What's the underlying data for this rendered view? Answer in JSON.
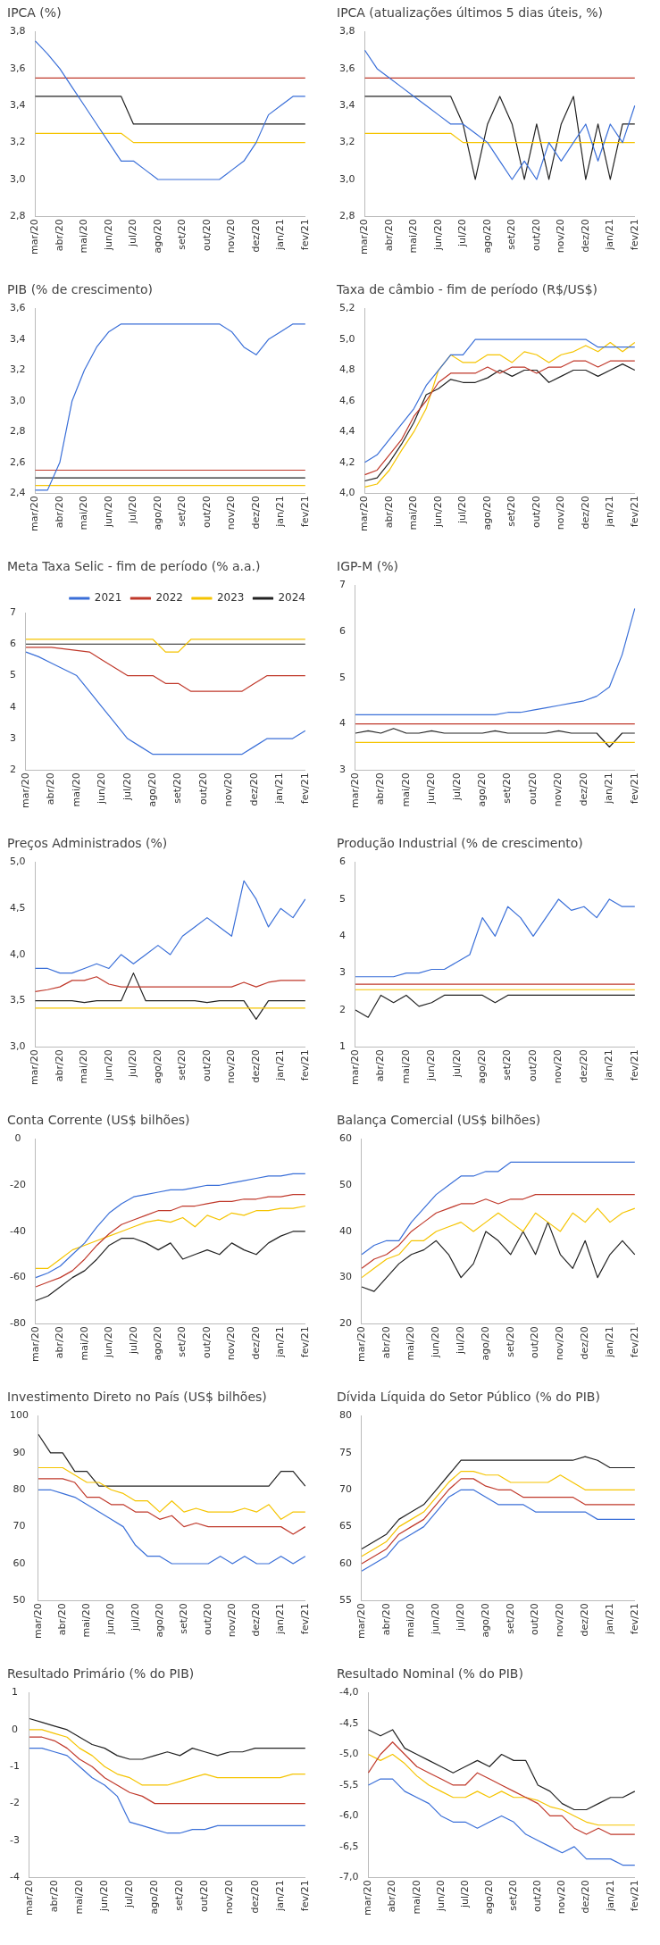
{
  "chart_data": [
    {
      "type": "line",
      "title": "IPCA (%)",
      "categories": [
        "mar/20",
        null,
        "abr/20",
        null,
        "mai/20",
        null,
        "jun/20",
        null,
        "jul/20",
        null,
        "ago/20",
        null,
        "set/20",
        null,
        "out/20",
        null,
        "nov/20",
        null,
        "dez/20",
        null,
        "jan/21",
        null,
        "fev/21"
      ],
      "ylim": [
        2.8,
        3.8
      ],
      "yticks": [
        {
          "value": 2.8,
          "label": "2,8"
        },
        {
          "value": 3.0,
          "label": "3,0"
        },
        {
          "value": 3.2,
          "label": "3,2"
        },
        {
          "value": 3.4,
          "label": "3,4"
        },
        {
          "value": 3.6,
          "label": "3,6"
        },
        {
          "value": 3.8,
          "label": "3,8"
        }
      ],
      "series": [
        {
          "color": "#3a6fd8",
          "values": [
            3.75,
            3.68,
            3.6,
            3.5,
            3.4,
            3.3,
            3.2,
            3.1,
            3.1,
            3.05,
            3.0,
            3.0,
            3.0,
            3.0,
            3.0,
            3.0,
            3.05,
            3.1,
            3.2,
            3.35,
            3.4,
            3.45,
            3.45
          ]
        },
        {
          "color": "#c0392b",
          "values": [
            3.55,
            3.55,
            3.55,
            3.55,
            3.55,
            3.55,
            3.55,
            3.55,
            3.55,
            3.55,
            3.55,
            3.55,
            3.55,
            3.55,
            3.55,
            3.55,
            3.55,
            3.55,
            3.55,
            3.55,
            3.55,
            3.55,
            3.55
          ]
        },
        {
          "color": "#f5c400",
          "values": [
            3.25,
            3.25,
            3.25,
            3.25,
            3.25,
            3.25,
            3.25,
            3.25,
            3.2,
            3.2,
            3.2,
            3.2,
            3.2,
            3.2,
            3.2,
            3.2,
            3.2,
            3.2,
            3.2,
            3.2,
            3.2,
            3.2,
            3.2
          ]
        },
        {
          "color": "#222222",
          "values": [
            3.45,
            3.45,
            3.45,
            3.45,
            3.45,
            3.45,
            3.45,
            3.45,
            3.3,
            3.3,
            3.3,
            3.3,
            3.3,
            3.3,
            3.3,
            3.3,
            3.3,
            3.3,
            3.3,
            3.3,
            3.3,
            3.3,
            3.3
          ]
        }
      ]
    },
    {
      "type": "line",
      "title": "IPCA (atualizações últimos 5 dias úteis, %)",
      "categories": [
        "mar/20",
        null,
        "abr/20",
        null,
        "mai/20",
        null,
        "jun/20",
        null,
        "jul/20",
        null,
        "ago/20",
        null,
        "set/20",
        null,
        "out/20",
        null,
        "nov/20",
        null,
        "dez/20",
        null,
        "jan/21",
        null,
        "fev/21"
      ],
      "ylim": [
        2.8,
        3.8
      ],
      "yticks": [
        {
          "value": 2.8,
          "label": "2,8"
        },
        {
          "value": 3.0,
          "label": "3,0"
        },
        {
          "value": 3.2,
          "label": "3,2"
        },
        {
          "value": 3.4,
          "label": "3,4"
        },
        {
          "value": 3.6,
          "label": "3,6"
        },
        {
          "value": 3.8,
          "label": "3,8"
        }
      ],
      "series": [
        {
          "color": "#3a6fd8",
          "values": [
            3.7,
            3.6,
            3.55,
            3.5,
            3.45,
            3.4,
            3.35,
            3.3,
            3.3,
            3.25,
            3.2,
            3.1,
            3.0,
            3.1,
            3.0,
            3.2,
            3.1,
            3.2,
            3.3,
            3.1,
            3.3,
            3.2,
            3.4
          ]
        },
        {
          "color": "#c0392b",
          "values": [
            3.55,
            3.55,
            3.55,
            3.55,
            3.55,
            3.55,
            3.55,
            3.55,
            3.55,
            3.55,
            3.55,
            3.55,
            3.55,
            3.55,
            3.55,
            3.55,
            3.55,
            3.55,
            3.55,
            3.55,
            3.55,
            3.55,
            3.55
          ]
        },
        {
          "color": "#f5c400",
          "values": [
            3.25,
            3.25,
            3.25,
            3.25,
            3.25,
            3.25,
            3.25,
            3.25,
            3.2,
            3.2,
            3.2,
            3.2,
            3.2,
            3.2,
            3.2,
            3.2,
            3.2,
            3.2,
            3.2,
            3.2,
            3.2,
            3.2,
            3.2
          ]
        },
        {
          "color": "#222222",
          "values": [
            3.45,
            3.45,
            3.45,
            3.45,
            3.45,
            3.45,
            3.45,
            3.45,
            3.3,
            3.0,
            3.3,
            3.45,
            3.3,
            3.0,
            3.3,
            3.0,
            3.3,
            3.45,
            3.0,
            3.3,
            3.0,
            3.3,
            3.3
          ]
        }
      ]
    },
    {
      "type": "line",
      "title": "PIB (% de crescimento)",
      "categories": [
        "mar/20",
        null,
        "abr/20",
        null,
        "mai/20",
        null,
        "jun/20",
        null,
        "jul/20",
        null,
        "ago/20",
        null,
        "set/20",
        null,
        "out/20",
        null,
        "nov/20",
        null,
        "dez/20",
        null,
        "jan/21",
        null,
        "fev/21"
      ],
      "ylim": [
        2.4,
        3.6
      ],
      "yticks": [
        {
          "value": 2.4,
          "label": "2,4"
        },
        {
          "value": 2.6,
          "label": "2,6"
        },
        {
          "value": 2.8,
          "label": "2,8"
        },
        {
          "value": 3.0,
          "label": "3,0"
        },
        {
          "value": 3.2,
          "label": "3,2"
        },
        {
          "value": 3.4,
          "label": "3,4"
        },
        {
          "value": 3.6,
          "label": "3,6"
        }
      ],
      "series": [
        {
          "color": "#3a6fd8",
          "values": [
            2.42,
            2.42,
            2.6,
            3.0,
            3.2,
            3.35,
            3.45,
            3.5,
            3.5,
            3.5,
            3.5,
            3.5,
            3.5,
            3.5,
            3.5,
            3.5,
            3.45,
            3.35,
            3.3,
            3.4,
            3.45,
            3.5,
            3.5
          ]
        },
        {
          "color": "#c0392b",
          "values": [
            2.55,
            2.55,
            2.55,
            2.55,
            2.55,
            2.55,
            2.55,
            2.55,
            2.55,
            2.55,
            2.55,
            2.55,
            2.55,
            2.55,
            2.55,
            2.55,
            2.55,
            2.55,
            2.55,
            2.55,
            2.55,
            2.55,
            2.55
          ]
        },
        {
          "color": "#f5c400",
          "values": [
            2.45,
            2.45,
            2.45,
            2.45,
            2.45,
            2.45,
            2.45,
            2.45,
            2.45,
            2.45,
            2.45,
            2.45,
            2.45,
            2.45,
            2.45,
            2.45,
            2.45,
            2.45,
            2.45,
            2.45,
            2.45,
            2.45,
            2.45
          ]
        },
        {
          "color": "#222222",
          "values": [
            2.5,
            2.5,
            2.5,
            2.5,
            2.5,
            2.5,
            2.5,
            2.5,
            2.5,
            2.5,
            2.5,
            2.5,
            2.5,
            2.5,
            2.5,
            2.5,
            2.5,
            2.5,
            2.5,
            2.5,
            2.5,
            2.5,
            2.5
          ]
        }
      ]
    },
    {
      "type": "line",
      "title": "Taxa de câmbio - fim de período (R$/US$)",
      "categories": [
        "mar/20",
        null,
        "abr/20",
        null,
        "mai/20",
        null,
        "jun/20",
        null,
        "jul/20",
        null,
        "ago/20",
        null,
        "set/20",
        null,
        "out/20",
        null,
        "nov/20",
        null,
        "dez/20",
        null,
        "jan/21",
        null,
        "fev/21"
      ],
      "ylim": [
        4.0,
        5.2
      ],
      "yticks": [
        {
          "value": 4.0,
          "label": "4,0"
        },
        {
          "value": 4.2,
          "label": "4,2"
        },
        {
          "value": 4.4,
          "label": "4,4"
        },
        {
          "value": 4.6,
          "label": "4,6"
        },
        {
          "value": 4.8,
          "label": "4,8"
        },
        {
          "value": 5.0,
          "label": "5,0"
        },
        {
          "value": 5.2,
          "label": "5,2"
        }
      ],
      "series": [
        {
          "color": "#3a6fd8",
          "values": [
            4.2,
            4.25,
            4.35,
            4.45,
            4.55,
            4.7,
            4.8,
            4.9,
            4.9,
            5.0,
            5.0,
            5.0,
            5.0,
            5.0,
            5.0,
            5.0,
            5.0,
            5.0,
            5.0,
            4.95,
            4.95,
            4.95,
            4.95
          ]
        },
        {
          "color": "#c0392b",
          "values": [
            4.12,
            4.15,
            4.25,
            4.35,
            4.5,
            4.6,
            4.72,
            4.78,
            4.78,
            4.78,
            4.82,
            4.78,
            4.82,
            4.82,
            4.78,
            4.82,
            4.82,
            4.86,
            4.86,
            4.82,
            4.86,
            4.86,
            4.86
          ]
        },
        {
          "color": "#f5c400",
          "values": [
            4.04,
            4.06,
            4.15,
            4.28,
            4.4,
            4.55,
            4.8,
            4.9,
            4.85,
            4.85,
            4.9,
            4.9,
            4.85,
            4.92,
            4.9,
            4.85,
            4.9,
            4.92,
            4.96,
            4.92,
            4.98,
            4.92,
            4.98
          ]
        },
        {
          "color": "#222222",
          "values": [
            4.08,
            4.1,
            4.2,
            4.32,
            4.46,
            4.64,
            4.68,
            4.74,
            4.72,
            4.72,
            4.75,
            4.8,
            4.76,
            4.8,
            4.8,
            4.72,
            4.76,
            4.8,
            4.8,
            4.76,
            4.8,
            4.84,
            4.8
          ]
        }
      ]
    },
    {
      "type": "line",
      "title": "Meta Taxa Selic - fim de período (% a.a.)",
      "legend": "top right",
      "categories": [
        "mar/20",
        null,
        "abr/20",
        null,
        "mai/20",
        null,
        "jun/20",
        null,
        "jul/20",
        null,
        "ago/20",
        null,
        "set/20",
        null,
        "out/20",
        null,
        "nov/20",
        null,
        "dez/20",
        null,
        "jan/21",
        null,
        "fev/21"
      ],
      "ylim": [
        2,
        7
      ],
      "yticks": [
        2,
        3,
        4,
        5,
        6,
        7
      ],
      "series": [
        {
          "name": "2021",
          "color": "#3a6fd8",
          "values": [
            5.75,
            5.6,
            5.4,
            5.2,
            5.0,
            4.5,
            4.0,
            3.5,
            3.0,
            2.75,
            2.5,
            2.5,
            2.5,
            2.5,
            2.5,
            2.5,
            2.5,
            2.5,
            2.75,
            3.0,
            3.0,
            3.0,
            3.25
          ]
        },
        {
          "name": "2022",
          "color": "#c0392b",
          "values": [
            5.9,
            5.9,
            5.9,
            5.85,
            5.8,
            5.75,
            5.5,
            5.25,
            5.0,
            5.0,
            5.0,
            4.75,
            4.75,
            4.5,
            4.5,
            4.5,
            4.5,
            4.5,
            4.75,
            5.0,
            5.0,
            5.0,
            5.0
          ]
        },
        {
          "name": "2023",
          "color": "#f5c400",
          "values": [
            6.15,
            6.15,
            6.15,
            6.15,
            6.15,
            6.15,
            6.15,
            6.15,
            6.15,
            6.15,
            6.15,
            5.75,
            5.75,
            6.15,
            6.15,
            6.15,
            6.15,
            6.15,
            6.15,
            6.15,
            6.15,
            6.15,
            6.15
          ]
        },
        {
          "name": "2024",
          "color": "#222222",
          "values": [
            6.0,
            6.0,
            6.0,
            6.0,
            6.0,
            6.0,
            6.0,
            6.0,
            6.0,
            6.0,
            6.0,
            6.0,
            6.0,
            6.0,
            6.0,
            6.0,
            6.0,
            6.0,
            6.0,
            6.0,
            6.0,
            6.0,
            6.0
          ]
        }
      ]
    },
    {
      "type": "line",
      "title": "IGP-M (%)",
      "categories": [
        "mar/20",
        null,
        "abr/20",
        null,
        "mai/20",
        null,
        "jun/20",
        null,
        "jul/20",
        null,
        "ago/20",
        null,
        "set/20",
        null,
        "out/20",
        null,
        "nov/20",
        null,
        "dez/20",
        null,
        "jan/21",
        null,
        "fev/21"
      ],
      "ylim": [
        3,
        7
      ],
      "yticks": [
        3,
        4,
        5,
        6,
        7
      ],
      "series": [
        {
          "color": "#3a6fd8",
          "values": [
            4.2,
            4.2,
            4.2,
            4.2,
            4.2,
            4.2,
            4.2,
            4.2,
            4.2,
            4.2,
            4.2,
            4.2,
            4.25,
            4.25,
            4.3,
            4.35,
            4.4,
            4.45,
            4.5,
            4.6,
            4.8,
            5.5,
            6.5
          ]
        },
        {
          "color": "#c0392b",
          "values": [
            4.0,
            4.0,
            4.0,
            4.0,
            4.0,
            4.0,
            4.0,
            4.0,
            4.0,
            4.0,
            4.0,
            4.0,
            4.0,
            4.0,
            4.0,
            4.0,
            4.0,
            4.0,
            4.0,
            4.0,
            4.0,
            4.0,
            4.0
          ]
        },
        {
          "color": "#f5c400",
          "values": [
            3.6,
            3.6,
            3.6,
            3.6,
            3.6,
            3.6,
            3.6,
            3.6,
            3.6,
            3.6,
            3.6,
            3.6,
            3.6,
            3.6,
            3.6,
            3.6,
            3.6,
            3.6,
            3.6,
            3.6,
            3.6,
            3.6,
            3.6
          ]
        },
        {
          "color": "#222222",
          "values": [
            3.8,
            3.85,
            3.8,
            3.9,
            3.8,
            3.8,
            3.85,
            3.8,
            3.8,
            3.8,
            3.8,
            3.85,
            3.8,
            3.8,
            3.8,
            3.8,
            3.85,
            3.8,
            3.8,
            3.8,
            3.5,
            3.8,
            3.8
          ]
        }
      ]
    },
    {
      "type": "line",
      "title": "Preços Administrados (%)",
      "categories": [
        "mar/20",
        null,
        "abr/20",
        null,
        "mai/20",
        null,
        "jun/20",
        null,
        "jul/20",
        null,
        "ago/20",
        null,
        "set/20",
        null,
        "out/20",
        null,
        "nov/20",
        null,
        "dez/20",
        null,
        "jan/21",
        null,
        "fev/21"
      ],
      "ylim": [
        3.0,
        5.0
      ],
      "yticks": [
        {
          "value": 3.0,
          "label": "3,0"
        },
        {
          "value": 3.5,
          "label": "3,5"
        },
        {
          "value": 4.0,
          "label": "4,0"
        },
        {
          "value": 4.5,
          "label": "4,5"
        },
        {
          "value": 5.0,
          "label": "5,0"
        }
      ],
      "series": [
        {
          "color": "#3a6fd8",
          "values": [
            3.85,
            3.85,
            3.8,
            3.8,
            3.85,
            3.9,
            3.85,
            4.0,
            3.9,
            4.0,
            4.1,
            4.0,
            4.2,
            4.3,
            4.4,
            4.3,
            4.2,
            4.8,
            4.6,
            4.3,
            4.5,
            4.4,
            4.6
          ]
        },
        {
          "color": "#c0392b",
          "values": [
            3.6,
            3.62,
            3.65,
            3.72,
            3.72,
            3.76,
            3.68,
            3.65,
            3.65,
            3.65,
            3.65,
            3.65,
            3.65,
            3.65,
            3.65,
            3.65,
            3.65,
            3.7,
            3.65,
            3.7,
            3.72,
            3.72,
            3.72
          ]
        },
        {
          "color": "#f5c400",
          "values": [
            3.42,
            3.42,
            3.42,
            3.42,
            3.42,
            3.42,
            3.42,
            3.42,
            3.42,
            3.42,
            3.42,
            3.42,
            3.42,
            3.42,
            3.42,
            3.42,
            3.42,
            3.42,
            3.42,
            3.42,
            3.42,
            3.42,
            3.42
          ]
        },
        {
          "color": "#222222",
          "values": [
            3.5,
            3.5,
            3.5,
            3.5,
            3.48,
            3.5,
            3.5,
            3.5,
            3.8,
            3.5,
            3.5,
            3.5,
            3.5,
            3.5,
            3.48,
            3.5,
            3.5,
            3.5,
            3.3,
            3.5,
            3.5,
            3.5,
            3.5
          ]
        }
      ]
    },
    {
      "type": "line",
      "title": "Produção Industrial (% de crescimento)",
      "categories": [
        "mar/20",
        null,
        "abr/20",
        null,
        "mai/20",
        null,
        "jun/20",
        null,
        "jul/20",
        null,
        "ago/20",
        null,
        "set/20",
        null,
        "out/20",
        null,
        "nov/20",
        null,
        "dez/20",
        null,
        "jan/21",
        null,
        "fev/21"
      ],
      "ylim": [
        1,
        6
      ],
      "yticks": [
        1,
        2,
        3,
        4,
        5,
        6
      ],
      "series": [
        {
          "color": "#3a6fd8",
          "values": [
            2.9,
            2.9,
            2.9,
            2.9,
            3.0,
            3.0,
            3.1,
            3.1,
            3.3,
            3.5,
            4.5,
            4.0,
            4.8,
            4.5,
            4.0,
            4.5,
            5.0,
            4.7,
            4.8,
            4.5,
            5.0,
            4.8,
            4.8
          ]
        },
        {
          "color": "#c0392b",
          "values": [
            2.7,
            2.7,
            2.7,
            2.7,
            2.7,
            2.7,
            2.7,
            2.7,
            2.7,
            2.7,
            2.7,
            2.7,
            2.7,
            2.7,
            2.7,
            2.7,
            2.7,
            2.7,
            2.7,
            2.7,
            2.7,
            2.7,
            2.7
          ]
        },
        {
          "color": "#f5c400",
          "values": [
            2.55,
            2.55,
            2.55,
            2.55,
            2.55,
            2.55,
            2.55,
            2.55,
            2.55,
            2.55,
            2.55,
            2.55,
            2.55,
            2.55,
            2.55,
            2.55,
            2.55,
            2.55,
            2.55,
            2.55,
            2.55,
            2.55,
            2.55
          ]
        },
        {
          "color": "#222222",
          "values": [
            2.0,
            1.8,
            2.4,
            2.2,
            2.4,
            2.1,
            2.2,
            2.4,
            2.4,
            2.4,
            2.4,
            2.2,
            2.4,
            2.4,
            2.4,
            2.4,
            2.4,
            2.4,
            2.4,
            2.4,
            2.4,
            2.4,
            2.4
          ]
        }
      ]
    },
    {
      "type": "line",
      "title": "Conta Corrente (US$ bilhões)",
      "categories": [
        "mar/20",
        null,
        "abr/20",
        null,
        "mai/20",
        null,
        "jun/20",
        null,
        "jul/20",
        null,
        "ago/20",
        null,
        "set/20",
        null,
        "out/20",
        null,
        "nov/20",
        null,
        "dez/20",
        null,
        "jan/21",
        null,
        "fev/21"
      ],
      "ylim": [
        -80,
        0
      ],
      "yticks": [
        -80,
        -60,
        -40,
        -20,
        0
      ],
      "series": [
        {
          "color": "#3a6fd8",
          "values": [
            -60,
            -58,
            -55,
            -50,
            -45,
            -38,
            -32,
            -28,
            -25,
            -24,
            -23,
            -22,
            -22,
            -21,
            -20,
            -20,
            -19,
            -18,
            -17,
            -16,
            -16,
            -15,
            -15
          ]
        },
        {
          "color": "#c0392b",
          "values": [
            -64,
            -62,
            -60,
            -57,
            -52,
            -46,
            -41,
            -37,
            -35,
            -33,
            -31,
            -31,
            -29,
            -29,
            -28,
            -27,
            -27,
            -26,
            -26,
            -25,
            -25,
            -24,
            -24
          ]
        },
        {
          "color": "#f5c400",
          "values": [
            -56,
            -56,
            -52,
            -48,
            -46,
            -44,
            -42,
            -40,
            -38,
            -36,
            -35,
            -36,
            -34,
            -38,
            -33,
            -35,
            -32,
            -33,
            -31,
            -31,
            -30,
            -30,
            -29
          ]
        },
        {
          "color": "#222222",
          "values": [
            -70,
            -68,
            -64,
            -60,
            -57,
            -52,
            -46,
            -43,
            -43,
            -45,
            -48,
            -45,
            -52,
            -50,
            -48,
            -50,
            -45,
            -48,
            -50,
            -45,
            -42,
            -40,
            -40
          ]
        }
      ]
    },
    {
      "type": "line",
      "title": "Balança Comercial (US$ bilhões)",
      "categories": [
        "mar/20",
        null,
        "abr/20",
        null,
        "mai/20",
        null,
        "jun/20",
        null,
        "jul/20",
        null,
        "ago/20",
        null,
        "set/20",
        null,
        "out/20",
        null,
        "nov/20",
        null,
        "dez/20",
        null,
        "jan/21",
        null,
        "fev/21"
      ],
      "ylim": [
        20,
        60
      ],
      "yticks": [
        20,
        30,
        40,
        50,
        60
      ],
      "series": [
        {
          "color": "#3a6fd8",
          "values": [
            35,
            37,
            38,
            38,
            42,
            45,
            48,
            50,
            52,
            52,
            53,
            53,
            55,
            55,
            55,
            55,
            55,
            55,
            55,
            55,
            55,
            55,
            55
          ]
        },
        {
          "color": "#c0392b",
          "values": [
            32,
            34,
            35,
            37,
            40,
            42,
            44,
            45,
            46,
            46,
            47,
            46,
            47,
            47,
            48,
            48,
            48,
            48,
            48,
            48,
            48,
            48,
            48
          ]
        },
        {
          "color": "#f5c400",
          "values": [
            30,
            32,
            34,
            35,
            38,
            38,
            40,
            41,
            42,
            40,
            42,
            44,
            42,
            40,
            44,
            42,
            40,
            44,
            42,
            45,
            42,
            44,
            45
          ]
        },
        {
          "color": "#222222",
          "values": [
            28,
            27,
            30,
            33,
            35,
            36,
            38,
            35,
            30,
            33,
            40,
            38,
            35,
            40,
            35,
            42,
            35,
            32,
            38,
            30,
            35,
            38,
            35
          ]
        }
      ]
    },
    {
      "type": "line",
      "title": "Investimento Direto no País (US$ bilhões)",
      "categories": [
        "mar/20",
        null,
        "abr/20",
        null,
        "mai/20",
        null,
        "jun/20",
        null,
        "jul/20",
        null,
        "ago/20",
        null,
        "set/20",
        null,
        "out/20",
        null,
        "nov/20",
        null,
        "dez/20",
        null,
        "jan/21",
        null,
        "fev/21"
      ],
      "ylim": [
        50,
        100
      ],
      "yticks": [
        50,
        60,
        70,
        80,
        90,
        100
      ],
      "series": [
        {
          "color": "#3a6fd8",
          "values": [
            80,
            80,
            79,
            78,
            76,
            74,
            72,
            70,
            65,
            62,
            62,
            60,
            60,
            60,
            60,
            62,
            60,
            62,
            60,
            60,
            62,
            60,
            62
          ]
        },
        {
          "color": "#c0392b",
          "values": [
            83,
            83,
            83,
            82,
            78,
            78,
            76,
            76,
            74,
            74,
            72,
            73,
            70,
            71,
            70,
            70,
            70,
            70,
            70,
            70,
            70,
            68,
            70
          ]
        },
        {
          "color": "#f5c400",
          "values": [
            86,
            86,
            86,
            84,
            82,
            82,
            80,
            79,
            77,
            77,
            74,
            77,
            74,
            75,
            74,
            74,
            74,
            75,
            74,
            76,
            72,
            74,
            74
          ]
        },
        {
          "color": "#222222",
          "values": [
            95,
            90,
            90,
            85,
            85,
            81,
            81,
            81,
            81,
            81,
            81,
            81,
            81,
            81,
            81,
            81,
            81,
            81,
            81,
            81,
            85,
            85,
            81
          ]
        }
      ]
    },
    {
      "type": "line",
      "title": "Dívida Líquida do Setor Público (% do PIB)",
      "categories": [
        "mar/20",
        null,
        "abr/20",
        null,
        "mai/20",
        null,
        "jun/20",
        null,
        "jul/20",
        null,
        "ago/20",
        null,
        "set/20",
        null,
        "out/20",
        null,
        "nov/20",
        null,
        "dez/20",
        null,
        "jan/21",
        null,
        "fev/21"
      ],
      "ylim": [
        55,
        80
      ],
      "yticks": [
        55,
        60,
        65,
        70,
        75,
        80
      ],
      "series": [
        {
          "color": "#3a6fd8",
          "values": [
            59,
            60,
            61,
            63,
            64,
            65,
            67,
            69,
            70,
            70,
            69,
            68,
            68,
            68,
            67,
            67,
            67,
            67,
            67,
            66,
            66,
            66,
            66
          ]
        },
        {
          "color": "#c0392b",
          "values": [
            60,
            61,
            62,
            64,
            65,
            66,
            68,
            70,
            71.5,
            71.5,
            70.5,
            70,
            70,
            69,
            69,
            69,
            69,
            69,
            68,
            68,
            68,
            68,
            68
          ]
        },
        {
          "color": "#f5c400",
          "values": [
            61,
            62,
            63,
            65,
            66,
            67,
            69,
            71,
            72.5,
            72.5,
            72,
            72,
            71,
            71,
            71,
            71,
            72,
            71,
            70,
            70,
            70,
            70,
            70
          ]
        },
        {
          "color": "#222222",
          "values": [
            62,
            63,
            64,
            66,
            67,
            68,
            70,
            72,
            74,
            74,
            74,
            74,
            74,
            74,
            74,
            74,
            74,
            74,
            74.5,
            74,
            73,
            73,
            73
          ]
        }
      ]
    },
    {
      "type": "line",
      "title": "Resultado Primário (% do PIB)",
      "categories": [
        "mar/20",
        null,
        "abr/20",
        null,
        "mai/20",
        null,
        "jun/20",
        null,
        "jul/20",
        null,
        "ago/20",
        null,
        "set/20",
        null,
        "out/20",
        null,
        "nov/20",
        null,
        "dez/20",
        null,
        "jan/21",
        null,
        "fev/21"
      ],
      "ylim": [
        -4,
        1
      ],
      "yticks": [
        -4,
        -3,
        -2,
        -1,
        0,
        1
      ],
      "series": [
        {
          "color": "#3a6fd8",
          "values": [
            -0.5,
            -0.5,
            -0.6,
            -0.7,
            -1.0,
            -1.3,
            -1.5,
            -1.8,
            -2.5,
            -2.6,
            -2.7,
            -2.8,
            -2.8,
            -2.7,
            -2.7,
            -2.6,
            -2.6,
            -2.6,
            -2.6,
            -2.6,
            -2.6,
            -2.6,
            -2.6
          ]
        },
        {
          "color": "#c0392b",
          "values": [
            -0.2,
            -0.2,
            -0.3,
            -0.5,
            -0.8,
            -1.0,
            -1.3,
            -1.5,
            -1.7,
            -1.8,
            -2.0,
            -2.0,
            -2.0,
            -2.0,
            -2.0,
            -2.0,
            -2.0,
            -2.0,
            -2.0,
            -2.0,
            -2.0,
            -2.0,
            -2.0
          ]
        },
        {
          "color": "#f5c400",
          "values": [
            0,
            0,
            -0.1,
            -0.2,
            -0.5,
            -0.7,
            -1.0,
            -1.2,
            -1.3,
            -1.5,
            -1.5,
            -1.5,
            -1.4,
            -1.3,
            -1.2,
            -1.3,
            -1.3,
            -1.3,
            -1.3,
            -1.3,
            -1.3,
            -1.2,
            -1.2
          ]
        },
        {
          "color": "#222222",
          "values": [
            0.3,
            0.2,
            0.1,
            0,
            -0.2,
            -0.4,
            -0.5,
            -0.7,
            -0.8,
            -0.8,
            -0.7,
            -0.6,
            -0.7,
            -0.5,
            -0.6,
            -0.7,
            -0.6,
            -0.6,
            -0.5,
            -0.5,
            -0.5,
            -0.5,
            -0.5
          ]
        }
      ]
    },
    {
      "type": "line",
      "title": "Resultado Nominal (% do PIB)",
      "categories": [
        "mar/20",
        null,
        "abr/20",
        null,
        "mai/20",
        null,
        "jun/20",
        null,
        "jul/20",
        null,
        "ago/20",
        null,
        "set/20",
        null,
        "out/20",
        null,
        "nov/20",
        null,
        "dez/20",
        null,
        "jan/21",
        null,
        "fev/21"
      ],
      "ylim": [
        -7.0,
        -4.0
      ],
      "yticks": [
        {
          "value": -7.0,
          "label": "-7,0"
        },
        {
          "value": -6.5,
          "label": "-6,5"
        },
        {
          "value": -6.0,
          "label": "-6,0"
        },
        {
          "value": -5.5,
          "label": "-5,5"
        },
        {
          "value": -5.0,
          "label": "-5,0"
        },
        {
          "value": -4.5,
          "label": "-4,5"
        },
        {
          "value": -4.0,
          "label": "-4,0"
        }
      ],
      "series": [
        {
          "color": "#3a6fd8",
          "values": [
            -5.5,
            -5.4,
            -5.4,
            -5.6,
            -5.7,
            -5.8,
            -6.0,
            -6.1,
            -6.1,
            -6.2,
            -6.1,
            -6.0,
            -6.1,
            -6.3,
            -6.4,
            -6.5,
            -6.6,
            -6.5,
            -6.7,
            -6.7,
            -6.7,
            -6.8,
            -6.8
          ]
        },
        {
          "color": "#c0392b",
          "values": [
            -5.3,
            -5.0,
            -4.8,
            -5.0,
            -5.2,
            -5.3,
            -5.4,
            -5.5,
            -5.5,
            -5.3,
            -5.4,
            -5.5,
            -5.6,
            -5.7,
            -5.8,
            -6.0,
            -6.0,
            -6.2,
            -6.3,
            -6.2,
            -6.3,
            -6.3,
            -6.3
          ]
        },
        {
          "color": "#f5c400",
          "values": [
            -5.0,
            -5.1,
            -5.0,
            -5.15,
            -5.35,
            -5.5,
            -5.6,
            -5.7,
            -5.7,
            -5.6,
            -5.7,
            -5.6,
            -5.7,
            -5.7,
            -5.75,
            -5.85,
            -5.9,
            -6.0,
            -6.1,
            -6.15,
            -6.15,
            -6.15,
            -6.15
          ]
        },
        {
          "color": "#222222",
          "values": [
            -4.6,
            -4.7,
            -4.6,
            -4.9,
            -5.0,
            -5.1,
            -5.2,
            -5.3,
            -5.2,
            -5.1,
            -5.2,
            -5.0,
            -5.1,
            -5.1,
            -5.5,
            -5.6,
            -5.8,
            -5.9,
            -5.9,
            -5.8,
            -5.7,
            -5.7,
            -5.6
          ]
        }
      ]
    }
  ]
}
